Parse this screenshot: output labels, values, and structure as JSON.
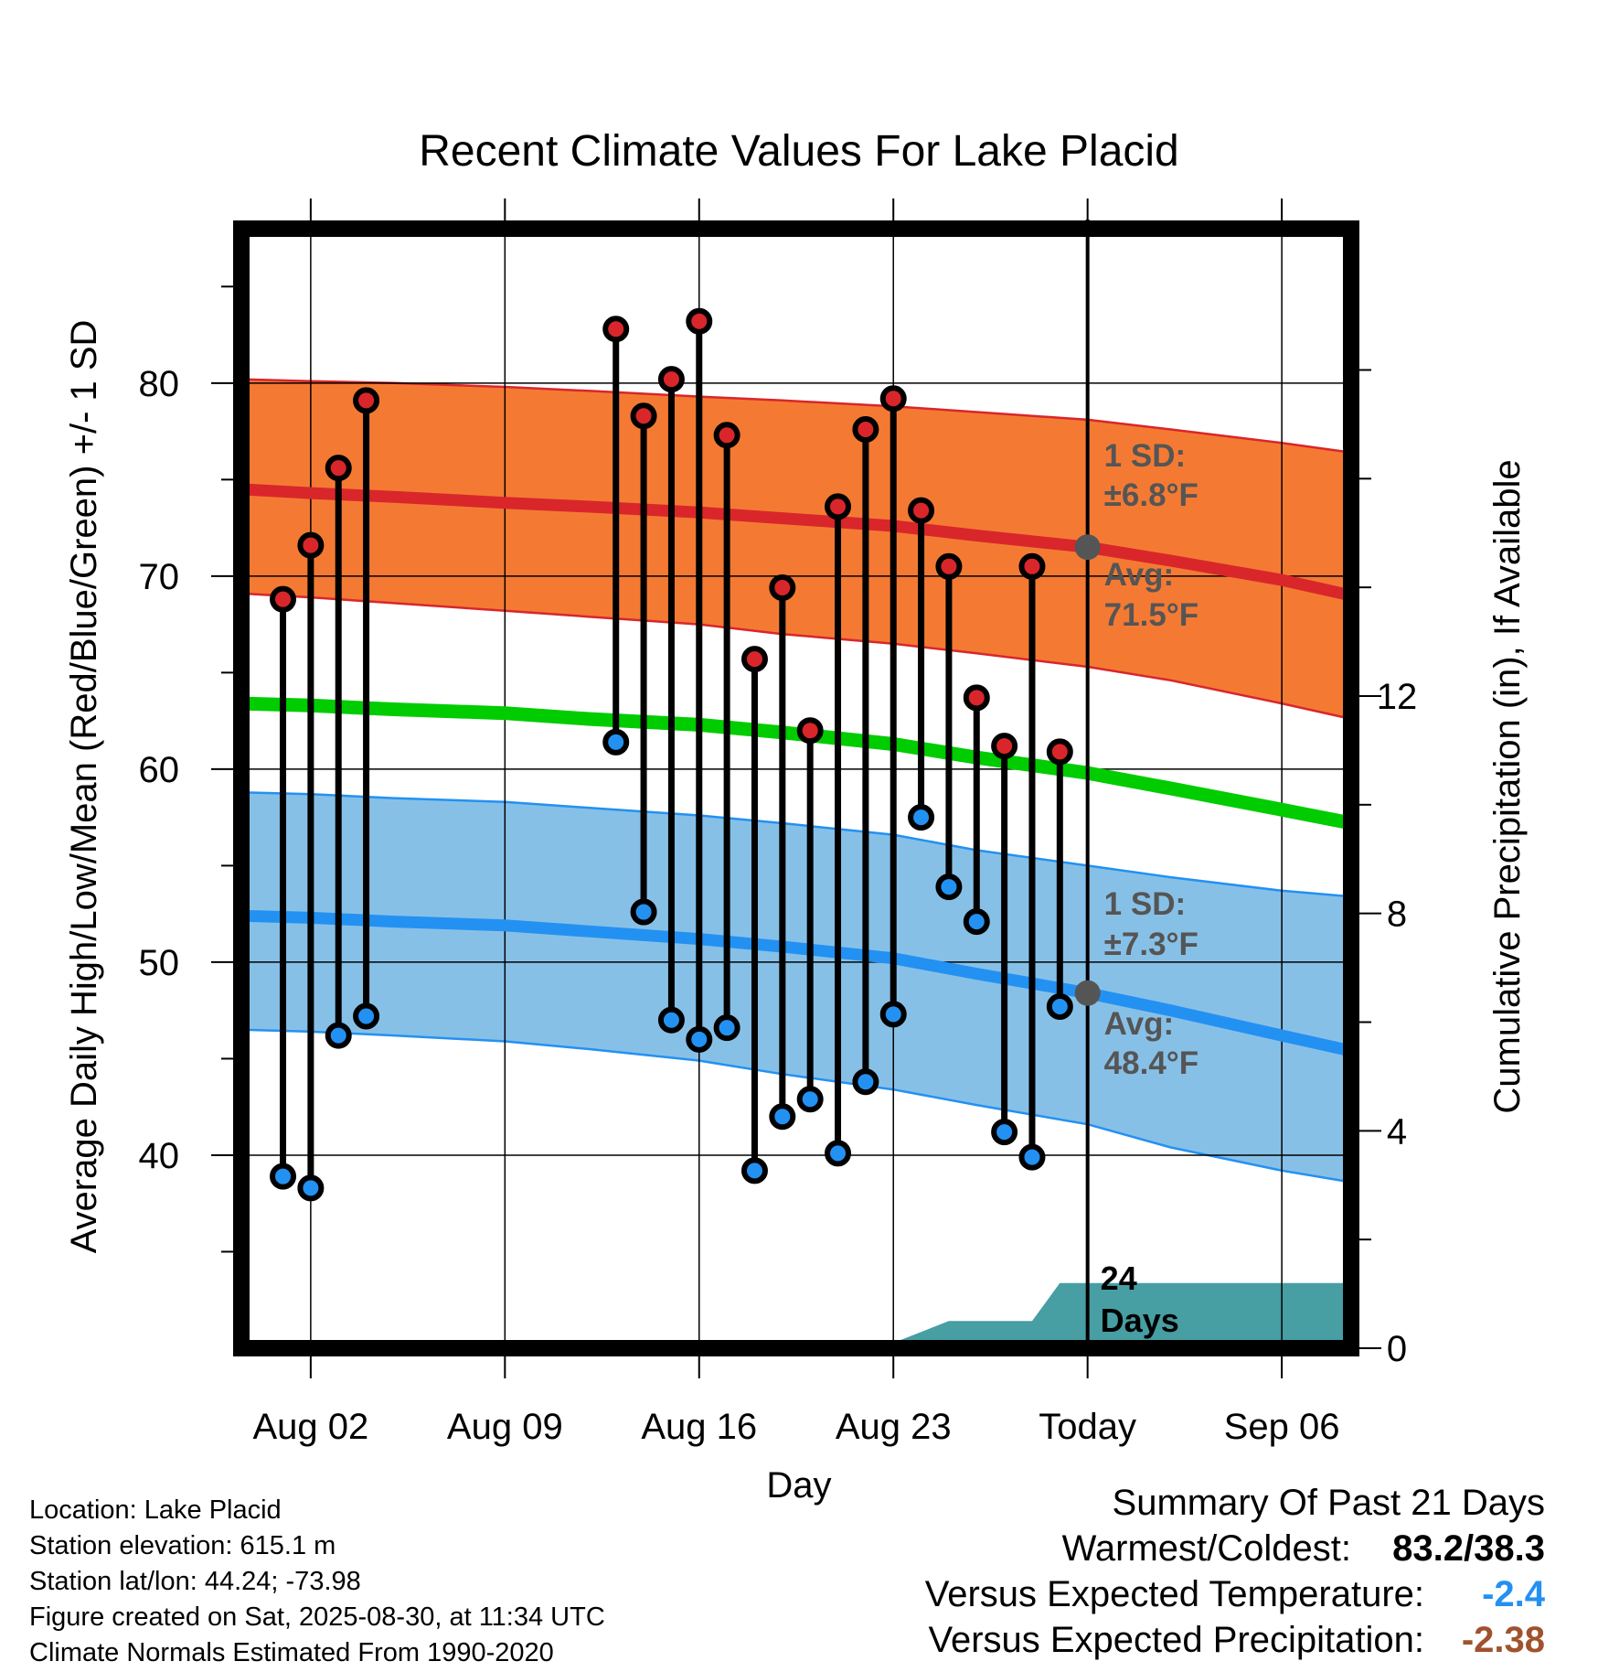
{
  "chart_data": {
    "type": "line",
    "title": "Recent Climate Values For Lake Placid",
    "xlabel": "Day",
    "ylabel": "Average Daily High/Low/Mean (Red/Blue/Green) +/- 1 SD",
    "y2label": "Cumulative Precipitation (in), If Available",
    "x_tick_labels": [
      "Aug 02",
      "Aug 09",
      "Aug 16",
      "Aug 23",
      "Today",
      "Sep 06"
    ],
    "x_tick_days": [
      2,
      9,
      16,
      23,
      30,
      37
    ],
    "x_range_days": [
      -0.5,
      39.5
    ],
    "today_day": 30,
    "ylim": [
      30,
      88
    ],
    "y_ticks": [
      40,
      50,
      60,
      70,
      80
    ],
    "y2lim": [
      0,
      20.6
    ],
    "y2_ticks": [
      0,
      4,
      8,
      12
    ],
    "grid": true,
    "normals_days": [
      -0.5,
      2,
      5,
      9,
      12,
      16,
      19,
      23,
      26,
      30,
      33,
      37,
      39.5
    ],
    "normal_high": [
      74.5,
      74.3,
      74.1,
      73.8,
      73.6,
      73.3,
      73.0,
      72.6,
      72.1,
      71.5,
      70.8,
      69.8,
      69.0
    ],
    "normal_high_upper": [
      80.2,
      80.1,
      80.0,
      79.8,
      79.6,
      79.3,
      79.1,
      78.8,
      78.5,
      78.1,
      77.6,
      76.9,
      76.4
    ],
    "normal_high_lower": [
      69.1,
      68.9,
      68.6,
      68.2,
      67.9,
      67.5,
      67.0,
      66.5,
      66.0,
      65.3,
      64.6,
      63.4,
      62.6
    ],
    "normal_mean": [
      63.4,
      63.3,
      63.1,
      62.9,
      62.6,
      62.3,
      61.9,
      61.3,
      60.6,
      59.8,
      59.0,
      57.9,
      57.2
    ],
    "normal_low": [
      52.4,
      52.3,
      52.1,
      51.9,
      51.6,
      51.2,
      50.8,
      50.2,
      49.4,
      48.4,
      47.5,
      46.2,
      45.4
    ],
    "normal_low_upper": [
      58.8,
      58.7,
      58.5,
      58.3,
      58.0,
      57.6,
      57.2,
      56.6,
      55.8,
      55.0,
      54.4,
      53.7,
      53.4
    ],
    "normal_low_lower": [
      46.5,
      46.4,
      46.2,
      45.9,
      45.5,
      44.9,
      44.2,
      43.4,
      42.6,
      41.6,
      40.4,
      39.2,
      38.6
    ],
    "observations": [
      {
        "day": 1,
        "high": 68.8,
        "low": 38.9
      },
      {
        "day": 2,
        "high": 71.6,
        "low": 38.3
      },
      {
        "day": 3,
        "high": 75.6,
        "low": 46.2
      },
      {
        "day": 4,
        "high": 79.1,
        "low": 47.2
      },
      {
        "day": 13,
        "high": 82.8,
        "low": 61.4
      },
      {
        "day": 14,
        "high": 78.3,
        "low": 52.6
      },
      {
        "day": 15,
        "high": 80.2,
        "low": 47.0
      },
      {
        "day": 16,
        "high": 83.2,
        "low": 46.0
      },
      {
        "day": 17,
        "high": 77.3,
        "low": 46.6
      },
      {
        "day": 18,
        "high": 65.7,
        "low": 39.2
      },
      {
        "day": 19,
        "high": 69.4,
        "low": 42.0
      },
      {
        "day": 20,
        "high": 62.0,
        "low": 42.9
      },
      {
        "day": 21,
        "high": 73.6,
        "low": 40.1
      },
      {
        "day": 22,
        "high": 77.6,
        "low": 43.8
      },
      {
        "day": 23,
        "high": 79.2,
        "low": 47.3
      },
      {
        "day": 24,
        "high": 73.4,
        "low": 57.5
      },
      {
        "day": 25,
        "high": 70.5,
        "low": 53.9
      },
      {
        "day": 26,
        "high": 63.7,
        "low": 52.1
      },
      {
        "day": 27,
        "high": 61.2,
        "low": 41.2
      },
      {
        "day": 28,
        "high": 70.5,
        "low": 39.9
      },
      {
        "day": 29,
        "high": 60.9,
        "low": 47.7
      }
    ],
    "precip_days": [
      19,
      20,
      21,
      22,
      23,
      24,
      25,
      26,
      27,
      28,
      29,
      30,
      39.5
    ],
    "precip_cum": [
      0.0,
      0.1,
      0.1,
      0.1,
      0.1,
      0.3,
      0.5,
      0.5,
      0.5,
      0.5,
      1.2,
      1.2,
      1.2
    ],
    "annotations": {
      "high_sd": "1 SD:",
      "high_sd_val": "±6.8°F",
      "high_avg": "Avg:",
      "high_avg_val": "71.5°F",
      "low_sd": "1 SD:",
      "low_sd_val": "±7.3°F",
      "low_avg": "Avg:",
      "low_avg_val": "48.4°F",
      "days_count": "24",
      "days_word": "Days"
    },
    "colors": {
      "high_band": "#f47a33",
      "high_line": "#d9262b",
      "low_band": "#87c0e7",
      "low_line": "#2391f2",
      "mean_line": "#00cc00",
      "precip": "#479ea3",
      "high_dot": "#d9262b",
      "low_dot": "#2391f2",
      "today_dot": "#555555",
      "annotation_text": "#555555"
    }
  },
  "footer": {
    "location": "Location: Lake Placid",
    "elevation": "Station elevation: 615.1 m",
    "latlon": "Station lat/lon: 44.24; -73.98",
    "created": "Figure created on Sat, 2025-08-30, at 11:34 UTC",
    "normals": "Climate Normals Estimated From 1990-2020"
  },
  "summary": {
    "title": "Summary Of Past 21 Days",
    "warm_cold_label": "Warmest/Coldest:",
    "warm_cold_value": "83.2/38.3",
    "temp_label": "Versus Expected Temperature:",
    "temp_value": "-2.4",
    "temp_color": "#2391f2",
    "precip_label": "Versus Expected Precipitation:",
    "precip_value": "-2.38",
    "precip_color": "#a0522d"
  }
}
